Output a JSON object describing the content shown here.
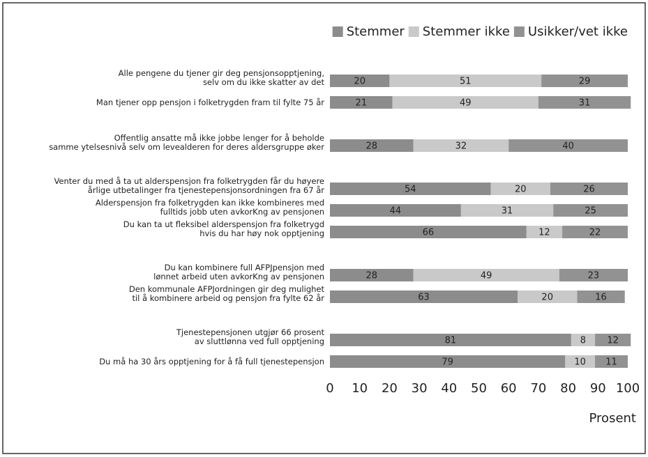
{
  "chart_data": {
    "type": "stacked-barh",
    "categories": [
      "Alle pengene du tjener gir deg pensjonsopptjening,\nselv om du ikke skatter av det",
      "Man tjener opp pensjon i folketrygden fram til fylte 75 år",
      "Offentlig ansatte må  ikke jobbe lenger  for å beholde\nsamme ytelsesnivå selv om levealderen for deres aldersgruppe øker",
      "Venter du med å ta ut alderspensjon fra folketrygden får du høyere\nårlige utbetalinger fra tjenestepensjonsordningen fra 67 år",
      "Alderspensjon fra folketrygden kan ikke kombineres med\nfulltids jobb uten avkorKng av pensjonen",
      "Du kan ta ut fleksibel alderspensjon fra folketrygd\nhvis du  har høy nok opptjening",
      "Du kan kombinere full AFPJpensjon med\nlønnet arbeid uten avkorKng av pensjonen",
      "Den kommunale AFPJordningen gir deg mulighet\ntil å kombinere arbeid og pensjon fra fylte 62 år",
      "Tjenestepensjonen utgjør 66 prosent\nav sluttlønna ved full opptjening",
      "Du må ha 30 års opptjening for å få full tjenestepensjon"
    ],
    "series": [
      {
        "name": "Stemmer",
        "color": "#8c8c8c",
        "values": [
          20,
          21,
          28,
          54,
          44,
          66,
          28,
          63,
          81,
          79
        ]
      },
      {
        "name": "Stemmer ikke",
        "color": "#c9c9c9",
        "values": [
          51,
          49,
          32,
          20,
          31,
          12,
          49,
          20,
          8,
          10
        ]
      },
      {
        "name": "Usikker/vet ikke",
        "color": "#929292",
        "values": [
          29,
          31,
          40,
          26,
          25,
          22,
          23,
          16,
          12,
          11
        ]
      }
    ],
    "xlabel": "Prosent",
    "xlim": [
      0,
      100
    ],
    "xticks": [
      0,
      10,
      20,
      30,
      40,
      50,
      60,
      70,
      80,
      90,
      100
    ],
    "legend": "top-right"
  }
}
